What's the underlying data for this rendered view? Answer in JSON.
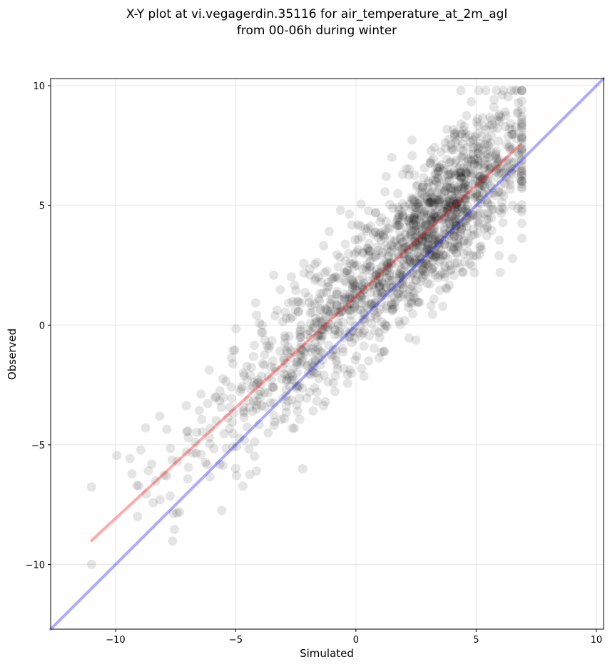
{
  "chart_data": {
    "type": "scatter",
    "title_lines": [
      "X-Y plot at vi.vegagerdin.35116 for air_temperature_at_2m_agl",
      "from 00-06h during winter"
    ],
    "xlabel": "Simulated",
    "ylabel": "Observed",
    "xlim": [
      -12.7,
      10.3
    ],
    "ylim": [
      -12.7,
      10.3
    ],
    "xticks": [
      -10,
      -5,
      0,
      5,
      10
    ],
    "yticks": [
      -10,
      -5,
      0,
      5,
      10
    ],
    "xtick_labels": [
      "−10",
      "−5",
      "0",
      "5",
      "10"
    ],
    "ytick_labels": [
      "−10",
      "−5",
      "0",
      "5",
      "10"
    ],
    "grid": true,
    "colors": {
      "points": "#000000",
      "one_to_one_line": "#0000ff",
      "regression_line": "#ff0000",
      "grid": "#d9d9d9"
    },
    "points": {
      "count": 1600,
      "x_range": [
        -11,
        6.9
      ],
      "regression_slope": 0.926,
      "regression_intercept": 1.19,
      "alpha": 0.1
    },
    "series": [
      {
        "type": "line",
        "x": [
          -12.7,
          10.3
        ],
        "y": [
          -12.7,
          10.3
        ]
      },
      {
        "type": "line",
        "x": [
          -11,
          6.85
        ],
        "y": [
          -9.0,
          7.55
        ]
      }
    ]
  }
}
